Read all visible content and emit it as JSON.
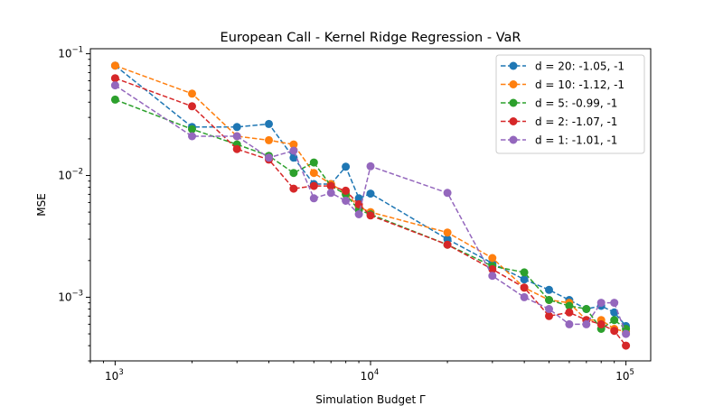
{
  "chart_data": {
    "type": "line",
    "title": "European Call - Kernel Ridge Regression - VaR",
    "xlabel": "Simulation Budget Γ",
    "ylabel": "MSE",
    "xscale": "log",
    "yscale": "log",
    "xlim": [
      800,
      125000
    ],
    "ylim": [
      0.0003,
      0.11
    ],
    "x_ticks": [
      {
        "value": 1000,
        "base": "10",
        "exp": "3"
      },
      {
        "value": 10000,
        "base": "10",
        "exp": "4"
      },
      {
        "value": 100000,
        "base": "10",
        "exp": "5"
      }
    ],
    "y_ticks": [
      {
        "value": 0.001,
        "base": "10",
        "exp": "−3"
      },
      {
        "value": 0.01,
        "base": "10",
        "exp": "−2"
      },
      {
        "value": 0.1,
        "base": "10",
        "exp": "−1"
      }
    ],
    "grid": false,
    "legend_position": "top-right",
    "x": [
      1000,
      2000,
      3000,
      4000,
      5000,
      6000,
      7000,
      8000,
      9000,
      10000,
      20000,
      30000,
      40000,
      50000,
      60000,
      70000,
      80000,
      90000,
      100000
    ],
    "series": [
      {
        "name": "d = 20: -1.05, -1",
        "color": "#1f77b4",
        "values": [
          0.08,
          0.025,
          0.025,
          0.0265,
          0.014,
          0.0085,
          0.0085,
          0.0118,
          0.0065,
          0.0071,
          0.003,
          0.0019,
          0.0014,
          0.00115,
          0.00095,
          0.0008,
          0.00085,
          0.00075,
          0.00058
        ]
      },
      {
        "name": "d = 10: -1.12, -1",
        "color": "#ff7f0e",
        "values": [
          0.08,
          0.047,
          0.021,
          0.0195,
          0.018,
          0.0105,
          0.0085,
          0.0072,
          0.0055,
          0.005,
          0.0034,
          0.0021,
          0.0012,
          0.00095,
          0.0009,
          0.00065,
          0.00065,
          0.00055,
          0.00052
        ]
      },
      {
        "name": "d = 5: -0.99, -1",
        "color": "#2ca02c",
        "values": [
          0.042,
          0.024,
          0.018,
          0.0145,
          0.0105,
          0.0128,
          0.0082,
          0.007,
          0.0052,
          0.0048,
          0.0027,
          0.0018,
          0.0016,
          0.00095,
          0.00085,
          0.0008,
          0.00055,
          0.00065,
          0.00055
        ]
      },
      {
        "name": "d = 2: -1.07, -1",
        "color": "#d62728",
        "values": [
          0.063,
          0.037,
          0.0165,
          0.0135,
          0.0078,
          0.0082,
          0.0082,
          0.0075,
          0.0058,
          0.0047,
          0.0027,
          0.0017,
          0.0012,
          0.0007,
          0.00075,
          0.00065,
          0.0006,
          0.00053,
          0.0004
        ]
      },
      {
        "name": "d = 1: -1.01, -1",
        "color": "#9467bd",
        "values": [
          0.055,
          0.021,
          0.021,
          0.014,
          0.016,
          0.0065,
          0.0072,
          0.0062,
          0.0048,
          0.0119,
          0.0072,
          0.0015,
          0.001,
          0.0008,
          0.0006,
          0.0006,
          0.0009,
          0.0009,
          0.0005
        ]
      }
    ]
  }
}
